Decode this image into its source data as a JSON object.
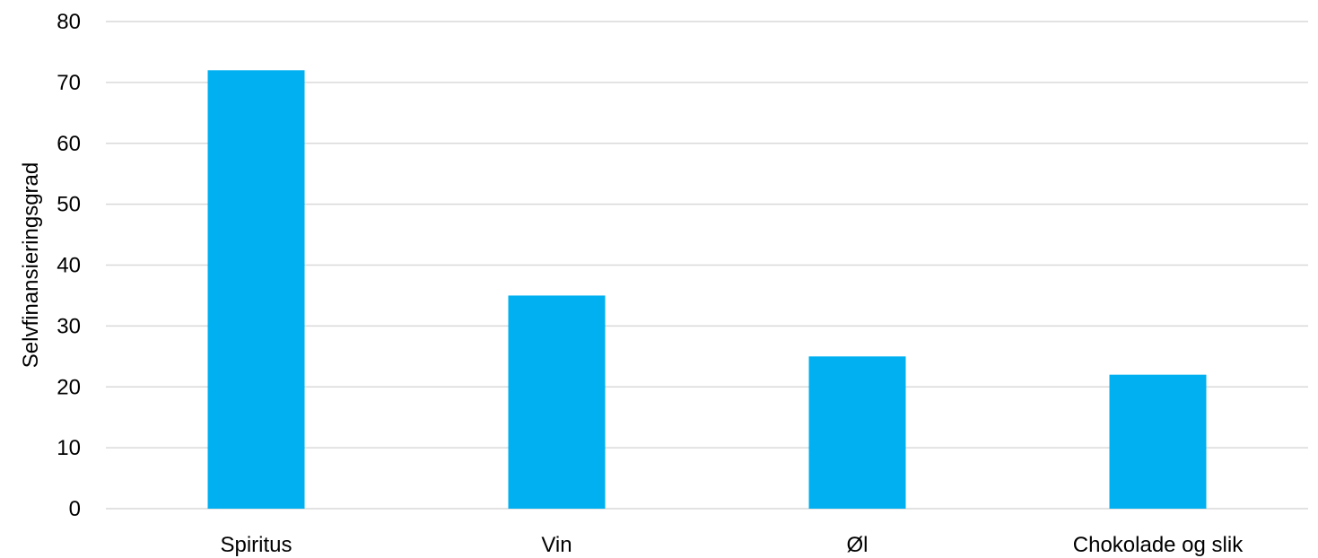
{
  "chart_data": {
    "type": "bar",
    "title": "",
    "xlabel": "",
    "ylabel": "Selvfinansieringsgrad",
    "categories": [
      "Spiritus",
      "Vin",
      "Øl",
      "Chokolade og slik"
    ],
    "values": [
      72,
      35,
      25,
      22
    ],
    "ylim": [
      0,
      80
    ],
    "yticks": [
      0,
      10,
      20,
      30,
      40,
      50,
      60,
      70,
      80
    ],
    "grid": true,
    "legend": "none",
    "bar_color": "#00B0F0",
    "grid_color": "#D9D9D9"
  }
}
